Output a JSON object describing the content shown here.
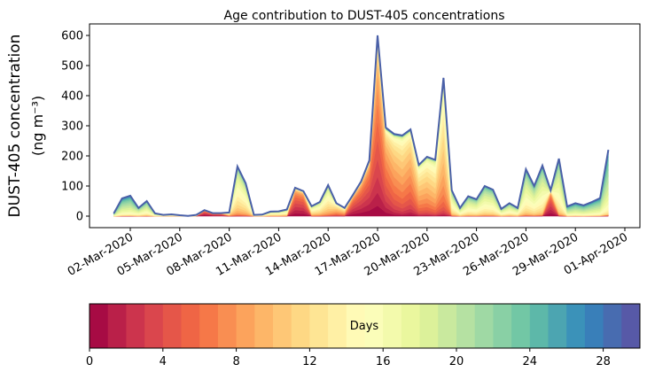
{
  "chart_data": {
    "type": "area",
    "stacked": true,
    "title": "Age contribution to DUST-405 concentrations",
    "ylabel_line1": "DUST-405 concentration",
    "ylabel_line2": "(ng m⁻³)",
    "xlabel": "",
    "ylim": [
      -30,
      630
    ],
    "yticks": [
      0,
      100,
      200,
      300,
      400,
      500,
      600
    ],
    "x_start": "01-Mar-2020 00:00",
    "x_step_hours": 12,
    "xticks": [
      "02-Mar-2020",
      "05-Mar-2020",
      "08-Mar-2020",
      "11-Mar-2020",
      "14-Mar-2020",
      "17-Mar-2020",
      "20-Mar-2020",
      "23-Mar-2020",
      "26-Mar-2020",
      "29-Mar-2020",
      "01-Apr-2020"
    ],
    "xtick_day_offsets": [
      1,
      4,
      7,
      10,
      13,
      16,
      19,
      22,
      25,
      28,
      31
    ],
    "totals": [
      9,
      59,
      68,
      27,
      50,
      9,
      4,
      6,
      3,
      1,
      4,
      20,
      10,
      10,
      12,
      165,
      109,
      4,
      5,
      15,
      16,
      22,
      94,
      83,
      33,
      47,
      103,
      43,
      27,
      70,
      115,
      185,
      600,
      294,
      273,
      268,
      288,
      170,
      197,
      187,
      459,
      86,
      27,
      66,
      56,
      100,
      88,
      24,
      43,
      27,
      156,
      100,
      168,
      86,
      191,
      32,
      43,
      36,
      47,
      60,
      220
    ],
    "dominant_age_days": [
      20,
      20,
      20,
      18,
      18,
      18,
      16,
      16,
      16,
      16,
      16,
      1,
      2,
      3,
      12,
      15,
      15,
      15,
      15,
      15,
      15,
      15,
      3,
      3,
      14,
      14,
      14,
      10,
      10,
      3,
      3,
      3,
      5,
      6,
      8,
      9,
      8,
      10,
      10,
      11,
      11,
      16,
      17,
      17,
      17,
      17,
      17,
      17,
      17,
      17,
      17,
      17,
      17,
      2,
      17,
      20,
      20,
      20,
      20,
      20,
      20
    ],
    "colorbar": {
      "label": "Days",
      "range": [
        0,
        30
      ],
      "bins": 30,
      "ticks": [
        0,
        4,
        8,
        12,
        16,
        20,
        24,
        28
      ],
      "colormap": [
        "#9e0142",
        "#d53e4f",
        "#f46d43",
        "#fdae61",
        "#fee08b",
        "#ffffbf",
        "#e6f598",
        "#abdda4",
        "#66c2a5",
        "#3288bd",
        "#5e4fa2"
      ]
    },
    "outline_color": "#4a60a8"
  }
}
